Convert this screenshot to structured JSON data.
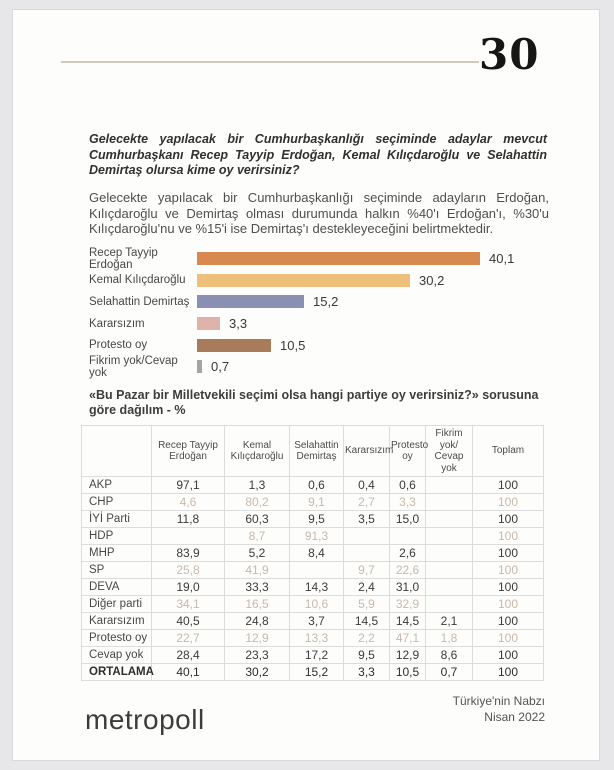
{
  "page": {
    "number": "30"
  },
  "question": {
    "text": "Gelecekte yapılacak bir Cumhurbaşkanlığı seçiminde adaylar mevcut Cumhurbaşkanı Recep Tayyip Erdoğan, Kemal Kılıçdaroğlu ve Selahattin Demirtaş olursa kime oy verirsiniz?"
  },
  "summary": {
    "text": "Gelecekte yapılacak bir Cumhurbaşkanlığı seçiminde adayların Erdoğan, Kılıçdaroğlu ve Demirtaş olması durumunda halkın %40'ı Erdoğan'ı, %30'u Kılıçdaroğlu'nu ve %15'i ise Demirtaş'ı destekleyeceğini belirtmektedir."
  },
  "chart_data": {
    "type": "bar",
    "orientation": "horizontal",
    "categories": [
      "Recep Tayyip Erdoğan",
      "Kemal Kılıçdaroğlu",
      "Selahattin Demirtaş",
      "Kararsızım",
      "Protesto oy",
      "Fikrim yok/Cevap yok"
    ],
    "values": [
      40.1,
      30.2,
      15.2,
      3.3,
      10.5,
      0.7
    ],
    "value_labels": [
      "40,1",
      "30,2",
      "15,2",
      "3,3",
      "10,5",
      "0,7"
    ],
    "bar_colors": [
      "#d8894f",
      "#edbf78",
      "#8a90b4",
      "#dfb2ab",
      "#a87b5a",
      "#a5a5a5"
    ],
    "xlim": [
      0,
      45
    ],
    "title": "",
    "xlabel": "",
    "ylabel": ""
  },
  "table": {
    "caption": "«Bu Pazar bir Milletvekili seçimi olsa hangi partiye oy verirsiniz?» sorusuna göre dağılım - %",
    "columns": [
      "",
      "Recep Tayyip Erdoğan",
      "Kemal Kılıçdaroğlu",
      "Selahattin Demirtaş",
      "Kararsızım",
      "Protesto oy",
      "Fikrim yok/ Cevap yok",
      "Toplam"
    ],
    "rows": [
      {
        "label": "AKP",
        "muted": false,
        "total": false,
        "values": [
          "97,1",
          "1,3",
          "0,6",
          "0,4",
          "0,6",
          "",
          "100"
        ]
      },
      {
        "label": "CHP",
        "muted": true,
        "total": false,
        "values": [
          "4,6",
          "80,2",
          "9,1",
          "2,7",
          "3,3",
          "",
          "100"
        ]
      },
      {
        "label": "İYİ Parti",
        "muted": false,
        "total": false,
        "values": [
          "11,8",
          "60,3",
          "9,5",
          "3,5",
          "15,0",
          "",
          "100"
        ]
      },
      {
        "label": "HDP",
        "muted": true,
        "total": false,
        "values": [
          "",
          "8,7",
          "91,3",
          "",
          "",
          "",
          "100"
        ]
      },
      {
        "label": "MHP",
        "muted": false,
        "total": false,
        "values": [
          "83,9",
          "5,2",
          "8,4",
          "",
          "2,6",
          "",
          "100"
        ]
      },
      {
        "label": "SP",
        "muted": true,
        "total": false,
        "values": [
          "25,8",
          "41,9",
          "",
          "9,7",
          "22,6",
          "",
          "100"
        ]
      },
      {
        "label": "DEVA",
        "muted": false,
        "total": false,
        "values": [
          "19,0",
          "33,3",
          "14,3",
          "2,4",
          "31,0",
          "",
          "100"
        ]
      },
      {
        "label": "Diğer parti",
        "muted": true,
        "total": false,
        "values": [
          "34,1",
          "16,5",
          "10,6",
          "5,9",
          "32,9",
          "",
          "100"
        ]
      },
      {
        "label": "Kararsızım",
        "muted": false,
        "total": false,
        "values": [
          "40,5",
          "24,8",
          "3,7",
          "14,5",
          "14,5",
          "2,1",
          "100"
        ]
      },
      {
        "label": "Protesto oy",
        "muted": true,
        "total": false,
        "values": [
          "22,7",
          "12,9",
          "13,3",
          "2,2",
          "47,1",
          "1,8",
          "100"
        ]
      },
      {
        "label": "Cevap yok",
        "muted": false,
        "total": false,
        "values": [
          "28,4",
          "23,3",
          "17,2",
          "9,5",
          "12,9",
          "8,6",
          "100"
        ]
      },
      {
        "label": "ORTALAMA",
        "muted": false,
        "total": true,
        "values": [
          "40,1",
          "30,2",
          "15,2",
          "3,3",
          "10,5",
          "0,7",
          "100"
        ]
      }
    ]
  },
  "footer": {
    "report_name": "Türkiye'nin Nabzı",
    "report_date": "Nisan 2022",
    "logo_text": "metropoll"
  },
  "colors": {
    "page_background": "#fdfdfc",
    "outer_background": "#e7e6e8",
    "header_rule": "#d0c9c0",
    "muted_row_text": "#c8b9ab",
    "table_border": "#dcdcdc"
  }
}
